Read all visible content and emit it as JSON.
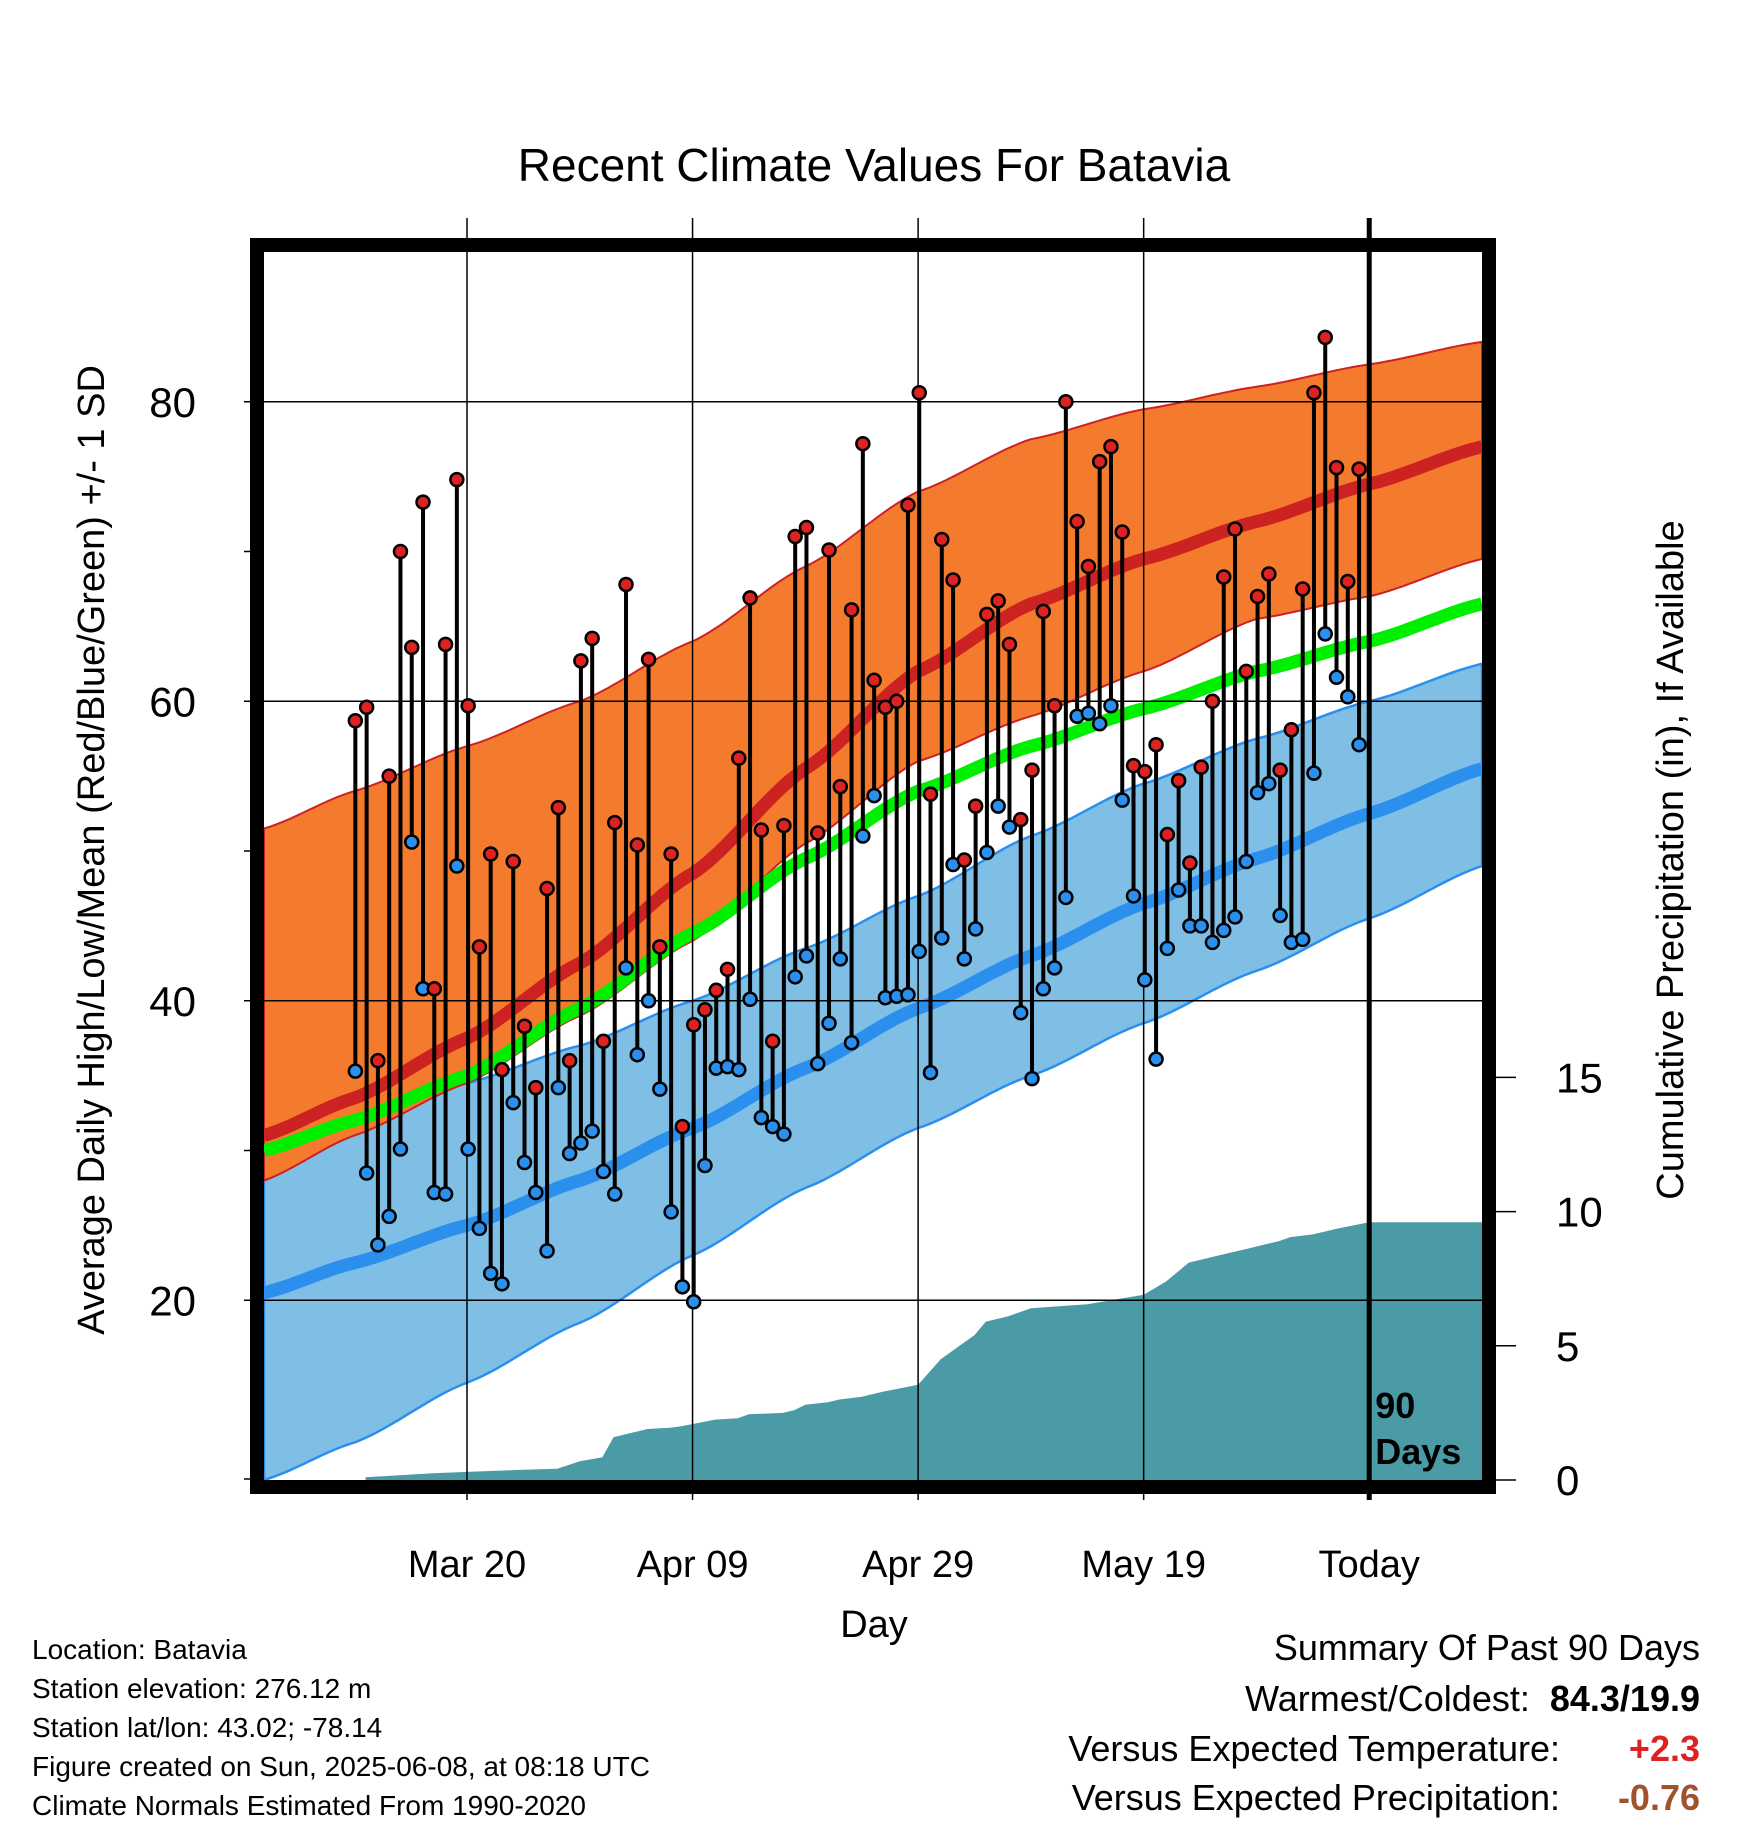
{
  "chart_data": {
    "type": "line",
    "title": "Recent Climate Values For Batavia",
    "xlabel": "Day",
    "ylabel": "Average Daily High/Low/Mean (Red/Blue/Green) +/- 1 SD",
    "y2label": "Cumulative Precipitation (in), If Available",
    "x_range_days": [
      -98,
      10
    ],
    "ylim": [
      8,
      90
    ],
    "y2lim": [
      0,
      45.75
    ],
    "y_ticks": [
      20,
      40,
      60,
      80
    ],
    "y_minor_ticks": [
      30,
      50,
      70
    ],
    "y2_ticks": [
      0,
      5,
      10,
      15
    ],
    "x_ticks": [
      {
        "day": -80,
        "label": "Mar 20"
      },
      {
        "day": -60,
        "label": "Apr 09"
      },
      {
        "day": -40,
        "label": "Apr 29"
      },
      {
        "day": -20,
        "label": "May 19"
      },
      {
        "day": 0,
        "label": "Today"
      }
    ],
    "grid": true,
    "today_marker_label": [
      "90",
      "Days"
    ],
    "colors": {
      "high_band": "#f47b2e",
      "high_mean": "#cc2222",
      "low_band": "#7fbfe6",
      "low_mean": "#2b8fee",
      "mean": "#00ee00",
      "precip": "#4a9ba6",
      "high_dot": "#dd2222",
      "low_dot": "#2b8fee"
    },
    "normals": {
      "x": [
        -98,
        -90,
        -80,
        -70,
        -60,
        -50,
        -40,
        -30,
        -20,
        -10,
        0,
        10
      ],
      "high_mean": [
        31,
        33.5,
        37.5,
        42.5,
        48.5,
        55.5,
        62,
        66.5,
        69.5,
        72,
        74.5,
        77
      ],
      "high_upper": [
        51.5,
        54,
        57,
        60,
        64,
        69,
        74,
        77.5,
        79.5,
        81,
        82.5,
        84
      ],
      "high_lower": [
        28,
        31,
        34.5,
        39,
        44,
        50.5,
        56,
        59,
        62,
        65.5,
        67,
        69.5
      ],
      "low_mean": [
        20.5,
        22.5,
        25,
        28,
        31.5,
        35.5,
        39.5,
        43,
        46.5,
        49.5,
        52.5,
        55.5
      ],
      "low_upper": [
        31.5,
        33,
        34.5,
        37,
        40,
        43.5,
        47,
        51,
        54.5,
        57.5,
        60,
        62.5
      ],
      "low_lower": [
        8,
        10.5,
        14.5,
        18.5,
        23,
        27.5,
        31.5,
        35,
        38.5,
        42,
        45.5,
        49
      ],
      "mean": [
        30,
        32,
        35,
        39.5,
        44.5,
        49.5,
        54,
        57,
        59.5,
        62,
        64,
        66.5
      ]
    },
    "daily": {
      "highs": [
        58.7,
        59.6,
        36,
        55,
        70,
        63.6,
        73.3,
        40.8,
        63.8,
        74.8,
        59.7,
        43.6,
        49.8,
        35.4,
        49.3,
        38.3,
        34.2,
        47.5,
        52.9,
        36,
        62.7,
        64.2,
        37.3,
        51.9,
        67.8,
        50.4,
        62.8,
        43.6,
        49.8,
        31.6,
        38.4,
        39.4,
        40.7,
        42.1,
        56.2,
        66.9,
        51.4,
        37.3,
        51.7,
        71,
        71.6,
        51.2,
        70.1,
        54.3,
        66.1,
        77.2,
        61.4,
        59.6,
        60,
        73.1,
        80.6,
        53.8,
        70.8,
        68.1,
        49.4,
        53,
        65.8,
        66.7,
        63.8,
        52.1,
        55.4,
        66,
        59.7,
        80,
        72,
        69,
        76,
        77,
        71.3,
        55.7,
        55.3,
        57.1,
        51.1,
        54.7,
        49.2,
        55.6,
        60,
        68.3,
        71.5,
        62,
        67,
        68.5,
        55.4,
        58.1,
        67.5,
        80.6,
        84.3,
        75.6,
        68,
        75.5
      ],
      "lows": [
        35.3,
        28.5,
        23.7,
        25.6,
        30.1,
        50.6,
        40.8,
        27.2,
        27.1,
        49,
        30.1,
        24.8,
        21.8,
        21.1,
        33.2,
        29.2,
        27.2,
        23.3,
        34.2,
        29.8,
        30.5,
        31.3,
        28.6,
        27.1,
        42.2,
        36.4,
        40,
        34.1,
        25.9,
        20.9,
        19.9,
        29,
        35.5,
        35.6,
        35.4,
        40.1,
        32.2,
        31.6,
        31.1,
        41.6,
        43,
        35.8,
        38.5,
        42.8,
        37.2,
        51,
        53.7,
        40.2,
        40.3,
        40.4,
        43.3,
        35.2,
        44.2,
        49.1,
        42.8,
        44.8,
        49.9,
        53,
        51.6,
        39.2,
        34.8,
        40.8,
        42.2,
        46.9,
        59,
        59.2,
        58.5,
        59.7,
        53.4,
        47,
        41.4,
        36.1,
        43.5,
        47.4,
        45,
        45,
        43.9,
        44.7,
        45.6,
        49.3,
        53.9,
        54.5,
        45.7,
        43.9,
        44.1,
        55.2,
        64.5,
        61.6,
        60.3,
        57.1
      ]
    },
    "precip": {
      "x": [
        -89,
        -86,
        -83,
        -80,
        -77,
        -75,
        -72,
        -70,
        -68,
        -67,
        -65,
        -64,
        -62,
        -61,
        -58,
        -56,
        -55,
        -52,
        -51,
        -50,
        -48,
        -47,
        -45,
        -43,
        -40,
        -38,
        -37,
        -36,
        -35,
        -34,
        -32,
        -30,
        -25,
        -20,
        -18,
        -17,
        -16,
        -13,
        -11,
        -10,
        -9,
        -8,
        -7,
        -5,
        -4,
        -3,
        0,
        10
      ],
      "y": [
        0.1,
        0.18,
        0.25,
        0.3,
        0.35,
        0.38,
        0.42,
        0.7,
        0.85,
        1.6,
        1.8,
        1.9,
        1.95,
        2,
        2.25,
        2.3,
        2.45,
        2.5,
        2.6,
        2.8,
        2.9,
        3,
        3.1,
        3.3,
        3.55,
        4.5,
        4.8,
        5.1,
        5.4,
        5.9,
        6.1,
        6.4,
        6.55,
        6.9,
        7.4,
        7.75,
        8.1,
        8.4,
        8.6,
        8.7,
        8.8,
        8.9,
        9.05,
        9.15,
        9.25,
        9.35,
        9.6,
        9.6
      ]
    }
  },
  "info": {
    "location": "Location: Batavia",
    "elevation": "Station elevation: 276.12 m",
    "latlon": "Station lat/lon: 43.02; -78.14",
    "created": "Figure created on Sun, 2025-06-08, at 08:18 UTC",
    "normals": "Climate Normals Estimated From 1990-2020"
  },
  "summary": {
    "title": "Summary Of Past 90 Days",
    "warm_label": "Warmest/Coldest:",
    "warm_value": "84.3/19.9",
    "temp_label": "Versus Expected Temperature:",
    "temp_value": "+2.3",
    "temp_color": "#dd2222",
    "precip_label": "Versus Expected Precipitation:",
    "precip_value": "-0.76",
    "precip_color": "#a0522d"
  }
}
